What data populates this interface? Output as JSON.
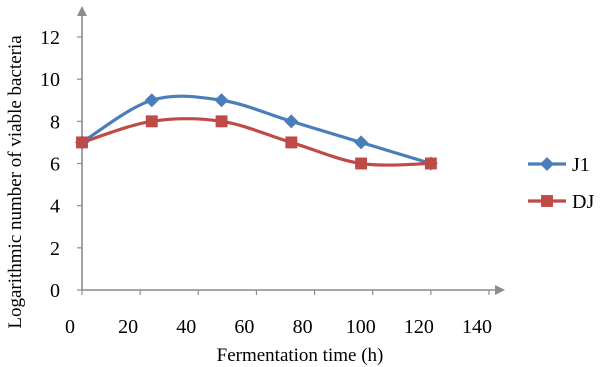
{
  "chart_data": {
    "type": "line",
    "smooth": true,
    "xlabel": "Fermentation time (h)",
    "ylabel": "Logarithmic number of viable bacteria",
    "xlim": [
      0,
      140
    ],
    "ylim": [
      0,
      12
    ],
    "x_ticks": [
      "0",
      "20",
      "40",
      "60",
      "80",
      "100",
      "120",
      "140"
    ],
    "y_ticks": [
      "0",
      "2",
      "4",
      "6",
      "8",
      "10",
      "12"
    ],
    "grid": false,
    "legend_position": "right",
    "series": [
      {
        "name": "J1",
        "color": "#4a7ebb",
        "marker": "diamond",
        "x": [
          0,
          24,
          48,
          72,
          96,
          120
        ],
        "y": [
          7,
          9,
          9,
          8,
          7,
          6
        ]
      },
      {
        "name": "DJ",
        "color": "#be4b48",
        "marker": "square",
        "x": [
          0,
          24,
          48,
          72,
          96,
          120
        ],
        "y": [
          7,
          8,
          8,
          7,
          6,
          6
        ]
      }
    ],
    "axis_color": "#8c8c8c"
  }
}
